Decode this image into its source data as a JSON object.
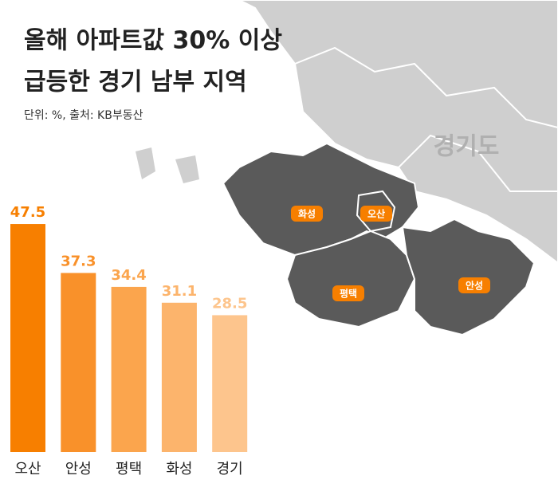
{
  "chart_data": {
    "type": "bar",
    "title": [
      "올해 아파트값 30% 이상",
      "급등한 경기 남부 지역"
    ],
    "subtitle": "단위: %, 출처: KB부동산",
    "categories": [
      "오산",
      "안성",
      "평택",
      "화성",
      "경기"
    ],
    "values": [
      47.5,
      37.3,
      34.4,
      31.1,
      28.5
    ],
    "colors": [
      "#f77f00",
      "#f9912a",
      "#fba54d",
      "#fcb46c",
      "#fdc58d"
    ],
    "ylim": [
      0,
      50
    ],
    "map_labels": [
      "경기도",
      "화성",
      "오산",
      "평택",
      "안성"
    ]
  }
}
